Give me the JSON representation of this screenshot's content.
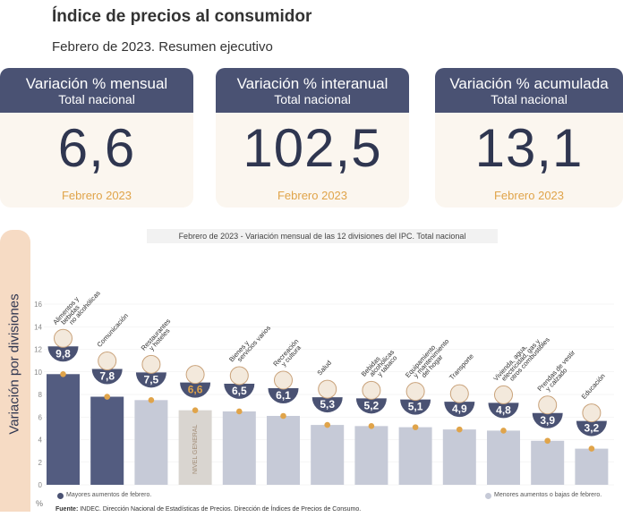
{
  "header": {
    "title": "Índice de precios al consumidor",
    "subtitle": "Febrero de 2023. Resumen ejecutivo"
  },
  "cards": [
    {
      "title": "Variación % mensual",
      "scope": "Total nacional",
      "value": "6,6",
      "period": "Febrero 2023"
    },
    {
      "title": "Variación % interanual",
      "scope": "Total nacional",
      "value": "102,5",
      "period": "Febrero 2023"
    },
    {
      "title": "Variación % acumulada",
      "scope": "Total nacional",
      "value": "13,1",
      "period": "Febrero 2023"
    }
  ],
  "side_label": "Variación por divisiones",
  "chart_caption": {
    "period": "Febrero de 2023",
    "text": " - Variación mensual de las 12 divisiones del IPC. Total nacional"
  },
  "legend": {
    "high": "Mayores aumentos de febrero.",
    "low": "Menores aumentos o bajas de febrero."
  },
  "source": {
    "label": "Fuente:",
    "text": " INDEC. Dirección Nacional de Estadísticas de Precios. Dirección de Índices de Precios de Consumo."
  },
  "colors": {
    "dark_blue": "#4a5273",
    "bar_high": "#535c80",
    "bar_low": "#c6cad7",
    "bar_level": "#d9d5d0",
    "accent": "#e0a44a",
    "side_panel": "#f6dbc4"
  },
  "chart_data": {
    "type": "bar",
    "title": "Febrero de 2023 - Variación mensual de las 12 divisiones del IPC. Total nacional",
    "ylabel": "Variación por divisiones",
    "y_unit": "%",
    "ylim": [
      0,
      16
    ],
    "yticks": [
      "0",
      "2",
      "4",
      "6",
      "8",
      "10",
      "12",
      "14",
      "16"
    ],
    "level_label": "NIVEL GENERAL",
    "categories": [
      [
        "Alimentos y",
        "bebidas",
        "no alcohólicas"
      ],
      [
        "Comunicación"
      ],
      [
        "Restaurantes",
        "y hoteles"
      ],
      [],
      [
        "Bienes y",
        "servicios varios"
      ],
      [
        "Recreación",
        "y cultura"
      ],
      [
        "Salud"
      ],
      [
        "Bebidas",
        "alcohólicas",
        "y tabaco"
      ],
      [
        "Equipamiento",
        "y mantenimiento",
        "del hogar"
      ],
      [
        "Transporte"
      ],
      [
        "Vivienda, agua,",
        "electricidad, gas y",
        "otros combustibles"
      ],
      [
        "Prendas de vestir",
        "y calzado"
      ],
      [
        "Educación"
      ]
    ],
    "values": [
      9.8,
      7.8,
      7.5,
      6.6,
      6.5,
      6.1,
      5.3,
      5.2,
      5.1,
      4.9,
      4.8,
      3.9,
      3.2
    ],
    "value_labels": [
      "9,8",
      "7,8",
      "7,5",
      "6,6",
      "6,5",
      "6,1",
      "5,3",
      "5,2",
      "5,1",
      "4,9",
      "4,8",
      "3,9",
      "3,2"
    ],
    "groups": [
      "high",
      "high",
      "low",
      "level",
      "low",
      "low",
      "low",
      "low",
      "low",
      "low",
      "low",
      "low",
      "low"
    ],
    "icons": [
      "food-basket-icon",
      "phone-icon",
      "cutlery-icon",
      "shopping-bag-icon",
      "razor-icon",
      "beach-umbrella-icon",
      "medical-cross-icon",
      "bottle-glass-icon",
      "stove-icon",
      "car-icon",
      "light-bulb-icon",
      "shirt-icon",
      "book-icon"
    ]
  }
}
